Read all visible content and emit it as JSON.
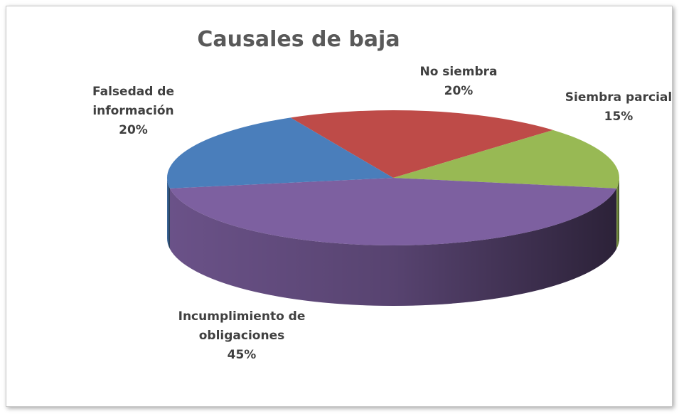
{
  "chart_data": {
    "type": "pie",
    "title": "Causales de baja",
    "categories": [
      "No siembra",
      "Siembra parcial",
      "Incumplimiento de obligaciones",
      "Falsedad de información"
    ],
    "values": [
      20,
      15,
      45,
      20
    ],
    "value_labels": [
      "20%",
      "15%",
      "45%",
      "20%"
    ],
    "colors": [
      "#be4b48",
      "#98b954",
      "#7d60a0",
      "#4a7ebb"
    ]
  }
}
